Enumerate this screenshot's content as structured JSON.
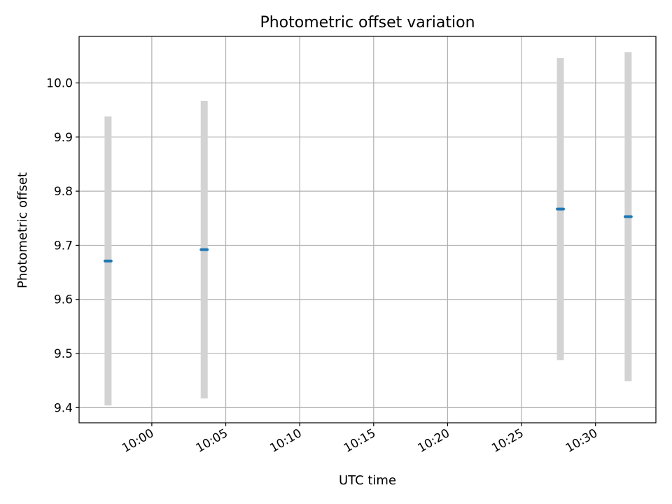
{
  "chart_data": {
    "type": "scatter",
    "title": "Photometric offset variation",
    "xlabel": "UTC time",
    "ylabel": "Photometric offset",
    "x_unit": "HH:MM (UTC)",
    "xlim": [
      "09:55:05",
      "10:34:05"
    ],
    "ylim": [
      9.372,
      10.086
    ],
    "xticks": [
      "10:00",
      "10:05",
      "10:10",
      "10:15",
      "10:20",
      "10:25",
      "10:30"
    ],
    "yticks": [
      "9.4",
      "9.5",
      "9.6",
      "9.7",
      "9.8",
      "9.9",
      "10.0"
    ],
    "grid": true,
    "series": [
      {
        "marker_color": "#1f77b4",
        "errorbar_color": "#d3d3d3",
        "points": [
          {
            "x_start": "09:56:50",
            "x_end": "09:57:15",
            "y": 9.671,
            "yerr": 0.267
          },
          {
            "x_start": "10:03:20",
            "x_end": "10:03:45",
            "y": 9.692,
            "yerr": 0.275
          },
          {
            "x_start": "10:27:25",
            "x_end": "10:27:50",
            "y": 9.767,
            "yerr": 0.279
          },
          {
            "x_start": "10:32:00",
            "x_end": "10:32:25",
            "y": 9.753,
            "yerr": 0.304
          }
        ]
      }
    ]
  }
}
